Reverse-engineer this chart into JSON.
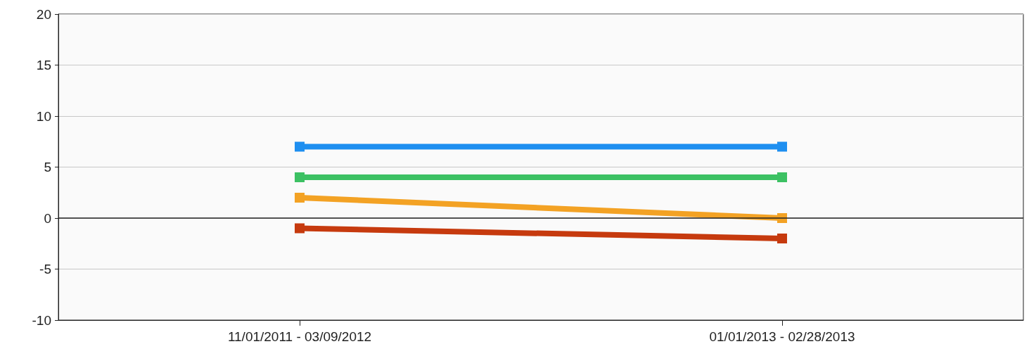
{
  "chart_data": {
    "type": "line",
    "categories": [
      "11/01/2011 - 03/09/2012",
      "01/01/2013 - 02/28/2013"
    ],
    "series": [
      {
        "color": "#1e8ff0",
        "values": [
          7,
          7
        ]
      },
      {
        "color": "#3cc163",
        "values": [
          4,
          4
        ]
      },
      {
        "color": "#f3a224",
        "values": [
          2,
          0
        ]
      },
      {
        "color": "#c63a0e",
        "values": [
          -1,
          -2
        ]
      }
    ],
    "ylim": [
      -10,
      20
    ],
    "yticks": [
      -10,
      -5,
      0,
      5,
      10,
      15,
      20
    ],
    "grid": "y",
    "marker": "square",
    "line_style": "solid",
    "ref_lines": [
      {
        "axis": "y",
        "value": 0,
        "color": "#222222"
      }
    ]
  }
}
